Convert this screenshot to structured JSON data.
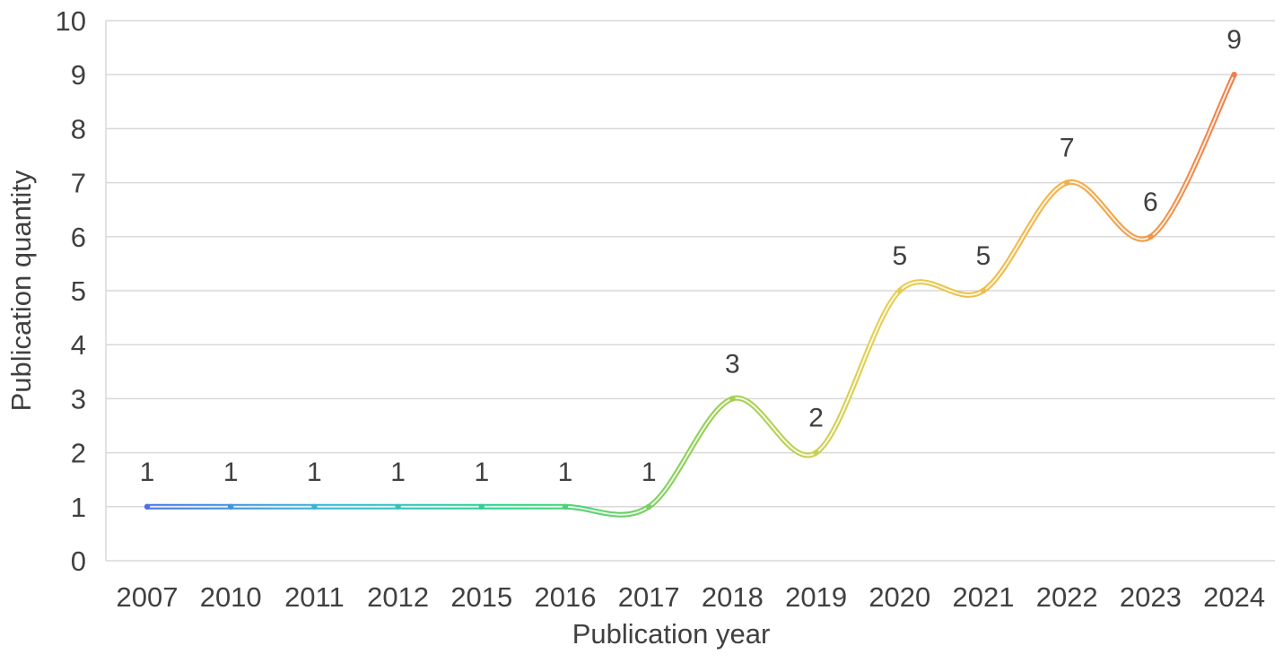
{
  "chart_data": {
    "type": "line",
    "smooth": true,
    "categories": [
      "2007",
      "2010",
      "2011",
      "2012",
      "2015",
      "2016",
      "2017",
      "2018",
      "2019",
      "2020",
      "2021",
      "2022",
      "2023",
      "2024"
    ],
    "series": [
      {
        "values": [
          1,
          1,
          1,
          1,
          1,
          1,
          1,
          3,
          2,
          5,
          5,
          7,
          6,
          9
        ]
      }
    ],
    "data_labels": [
      "1",
      "1",
      "1",
      "1",
      "1",
      "1",
      "1",
      "3",
      "2",
      "5",
      "5",
      "7",
      "6",
      "9"
    ],
    "xlabel": "Publication year",
    "ylabel": "Publication quantity",
    "ylim": [
      0,
      10
    ],
    "yticks": [
      "0",
      "1",
      "2",
      "3",
      "4",
      "5",
      "6",
      "7",
      "8",
      "9",
      "10"
    ],
    "grid": "horizontal",
    "legend": "none",
    "line_gradient": [
      "#4a74e6",
      "#3bb7d6",
      "#2fd38a",
      "#8fcf55",
      "#e3d04f",
      "#f4b347",
      "#ee7f4c"
    ],
    "gridline_color": "#d9d9d9",
    "text_color": "#404040"
  }
}
